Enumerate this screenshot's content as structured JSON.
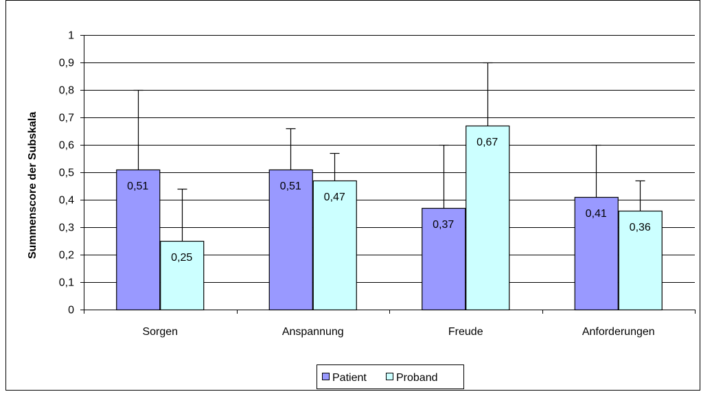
{
  "chart_data": {
    "type": "bar",
    "title": "",
    "xlabel": "",
    "ylabel": "Summenscore der Subskala",
    "ylim": [
      0,
      1
    ],
    "yticks": [
      0,
      0.1,
      0.2,
      0.3,
      0.4,
      0.5,
      0.6,
      0.7,
      0.8,
      0.9,
      1.0
    ],
    "ytick_labels": [
      "0",
      "0,1",
      "0,2",
      "0,3",
      "0,4",
      "0,5",
      "0,6",
      "0,7",
      "0,8",
      "0,9",
      "1"
    ],
    "categories": [
      "Sorgen",
      "Anspannung",
      "Freude",
      "Anforderungen"
    ],
    "series": [
      {
        "name": "Patient",
        "color": "#9999FF",
        "values": [
          0.51,
          0.51,
          0.37,
          0.41
        ],
        "value_labels": [
          "0,51",
          "0,51",
          "0,37",
          "0,41"
        ],
        "error_upper": [
          0.8,
          0.66,
          0.6,
          0.6
        ]
      },
      {
        "name": "Proband",
        "color": "#CCFFFF",
        "values": [
          0.25,
          0.47,
          0.67,
          0.36
        ],
        "value_labels": [
          "0,25",
          "0,47",
          "0,67",
          "0,36"
        ],
        "error_upper": [
          0.44,
          0.57,
          0.9,
          0.47
        ]
      }
    ],
    "grid": true,
    "legend_position": "bottom"
  }
}
